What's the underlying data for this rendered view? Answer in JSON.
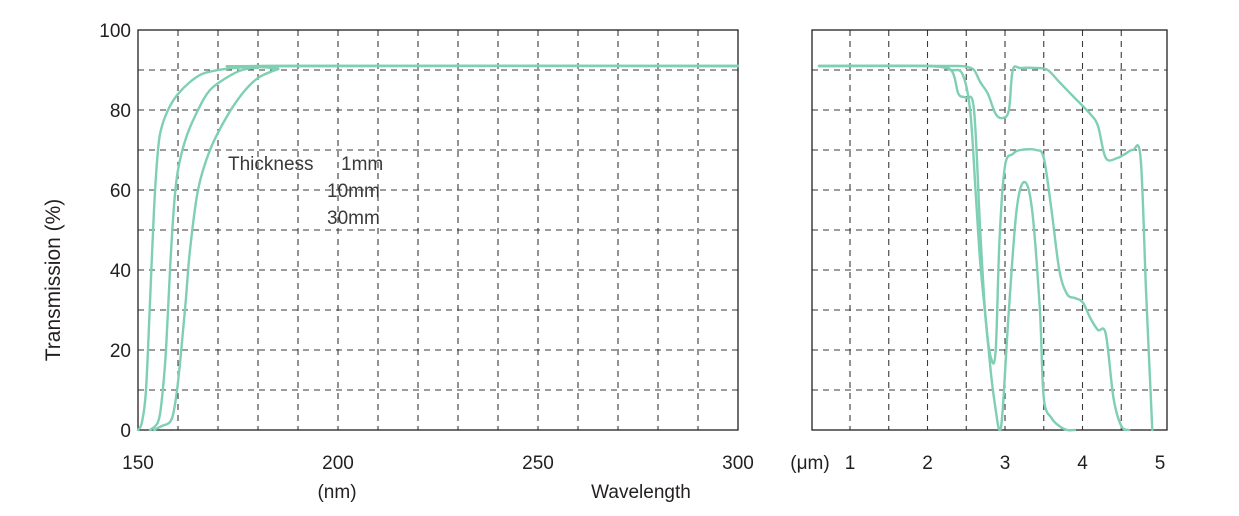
{
  "chart_data": {
    "type": "line",
    "ylabel": "Transmission (%)",
    "xlabel": "Wavelength",
    "ylim": [
      0,
      100
    ],
    "y_ticks": [
      "0",
      "20",
      "40",
      "60",
      "80",
      "100"
    ],
    "grid": true,
    "legend": {
      "title": "Thickness",
      "entries": [
        "1mm",
        "10mm",
        "30mm"
      ]
    },
    "panels": [
      {
        "name": "uv",
        "x_unit": "(nm)",
        "xlim": [
          150,
          300
        ],
        "x_ticks": [
          "150",
          "200",
          "250",
          "300"
        ],
        "series": [
          {
            "name": "1mm",
            "x": [
              150,
              151,
              152,
              153,
              154,
              155,
              156,
              158,
              160,
              163,
              166,
              170,
              174,
              178,
              182,
              300
            ],
            "y": [
              0,
              2,
              10,
              32,
              55,
              70,
              76,
              81,
              84,
              87,
              89,
              90,
              90.5,
              90.8,
              91,
              91
            ]
          },
          {
            "name": "10mm",
            "x": [
              153,
              155,
              156,
              157,
              158,
              159,
              160,
              162,
              165,
              168,
              172,
              176,
              180,
              185,
              300
            ],
            "y": [
              0,
              2,
              8,
              20,
              40,
              56,
              65,
              73,
              80,
              85,
              88,
              90,
              90.6,
              91,
              91
            ]
          },
          {
            "name": "30mm",
            "x": [
              154,
              156,
              158,
              159,
              160,
              161,
              162,
              163,
              165,
              168,
              172,
              176,
              180,
              185,
              189,
              300
            ],
            "y": [
              0,
              1,
              2,
              5,
              12,
              22,
              33,
              45,
              60,
              70,
              78,
              84,
              88,
              90.2,
              91,
              91
            ]
          }
        ]
      },
      {
        "name": "ir",
        "x_unit": "(μm)",
        "xlim": [
          0.6,
          5
        ],
        "x_ticks": [
          "1",
          "2",
          "3",
          "4",
          "5"
        ],
        "series": [
          {
            "name": "1mm",
            "x": [
              0.6,
              2.0,
              2.4,
              2.5,
              2.6,
              2.68,
              2.78,
              2.88,
              2.97,
              3.05,
              3.1,
              3.2,
              3.4,
              3.55,
              3.7,
              3.9,
              4.1,
              4.2,
              4.3,
              4.45,
              4.55,
              4.65,
              4.75,
              4.82,
              4.9
            ],
            "y": [
              91,
              91,
              91,
              90.8,
              90,
              87,
              84,
              79,
              78,
              80,
              90,
              90.5,
              90.5,
              90,
              87,
              83,
              79,
              76,
              68,
              68,
              69,
              70,
              68,
              35,
              0
            ]
          },
          {
            "name": "10mm",
            "x": [
              0.6,
              2.0,
              2.3,
              2.4,
              2.5,
              2.6,
              2.68,
              2.75,
              2.82,
              2.88,
              2.93,
              3.0,
              3.1,
              3.2,
              3.4,
              3.5,
              3.6,
              3.7,
              3.8,
              3.9,
              4.0,
              4.1,
              4.2,
              4.3,
              4.4,
              4.5,
              4.6
            ],
            "y": [
              91,
              91,
              90,
              84,
              83,
              80,
              50,
              28,
              18,
              20,
              48,
              66,
              69,
              70,
              70,
              68,
              55,
              40,
              34,
              33,
              32,
              28,
              25,
              24,
              8,
              1,
              0
            ]
          },
          {
            "name": "30mm",
            "x": [
              0.6,
              2.0,
              2.3,
              2.45,
              2.55,
              2.62,
              2.68,
              2.75,
              2.82,
              2.88,
              2.93,
              2.97,
              3.05,
              3.15,
              3.25,
              3.35,
              3.45,
              3.5,
              3.6,
              3.7,
              3.8,
              3.9
            ],
            "y": [
              91,
              91,
              90,
              89,
              80,
              60,
              42,
              28,
              14,
              5,
              0,
              5,
              30,
              55,
              62,
              55,
              30,
              8,
              3,
              1,
              0,
              0
            ]
          }
        ]
      }
    ]
  }
}
